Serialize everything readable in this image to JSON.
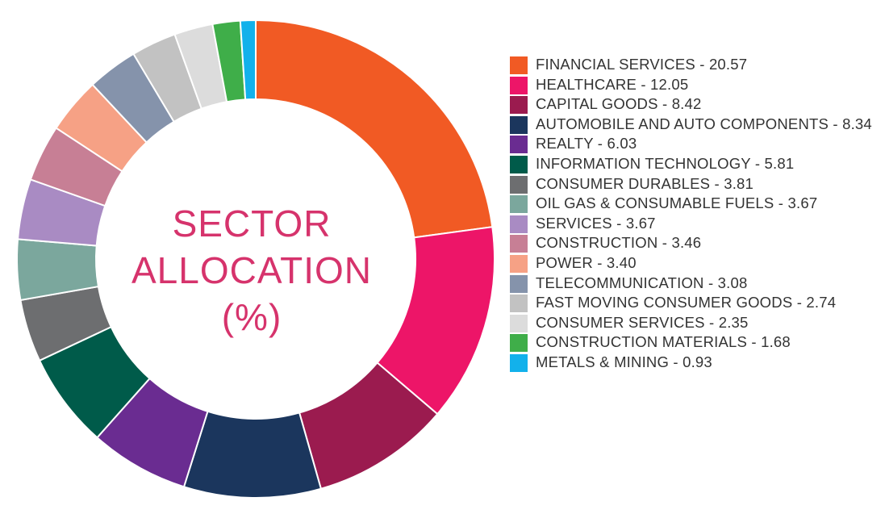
{
  "chart_data": {
    "type": "pie",
    "donut": true,
    "title_lines": [
      "SECTOR",
      "ALLOCATION",
      "(%)"
    ],
    "legend_position": "right",
    "categories": [
      "FINANCIAL SERVICES",
      "HEALTHCARE",
      "CAPITAL GOODS",
      "AUTOMOBILE AND AUTO COMPONENTS",
      "REALTY",
      "INFORMATION TECHNOLOGY",
      "CONSUMER DURABLES",
      "OIL GAS & CONSUMABLE FUELS",
      "SERVICES",
      "CONSTRUCTION",
      "POWER",
      "TELECOMMUNICATION",
      "FAST MOVING CONSUMER GOODS",
      "CONSUMER SERVICES",
      "CONSTRUCTION MATERIALS",
      "METALS & MINING"
    ],
    "values": [
      20.57,
      12.05,
      8.42,
      8.34,
      6.03,
      5.81,
      3.81,
      3.67,
      3.67,
      3.46,
      3.4,
      3.08,
      2.74,
      2.35,
      1.68,
      0.93
    ],
    "value_labels": [
      "20.57",
      "12.05",
      "8.42",
      "8.34",
      "6.03",
      "5.81",
      "3.81",
      "3.67",
      "3.67",
      "3.46",
      "3.40",
      "3.08",
      "2.74",
      "2.35",
      "1.68",
      "0.93"
    ],
    "legend_labels": [
      "FINANCIAL SERVICES - 20.57",
      "HEALTHCARE - 12.05",
      "CAPITAL GOODS - 8.42",
      "AUTOMOBILE AND AUTO COMPONENTS - 8.34",
      "REALTY - 6.03",
      "INFORMATION TECHNOLOGY - 5.81",
      "CONSUMER DURABLES - 3.81",
      "OIL GAS & CONSUMABLE FUELS - 3.67",
      "SERVICES - 3.67",
      "CONSTRUCTION - 3.46",
      "POWER - 3.40",
      "TELECOMMUNICATION - 3.08",
      "FAST MOVING CONSUMER GOODS - 2.74",
      "CONSUMER SERVICES - 2.35",
      "CONSTRUCTION MATERIALS - 1.68",
      "METALS & MINING - 0.93"
    ],
    "colors": [
      "#f15a24",
      "#ed1568",
      "#9b1b4f",
      "#1b365d",
      "#6a2c91",
      "#005b4a",
      "#6d6e70",
      "#7ba79d",
      "#a98bc3",
      "#c77f95",
      "#f6a185",
      "#8593ab",
      "#c2c2c2",
      "#dcdcdc",
      "#3fae49",
      "#12b1eb"
    ],
    "title_color": "#d6336c"
  }
}
